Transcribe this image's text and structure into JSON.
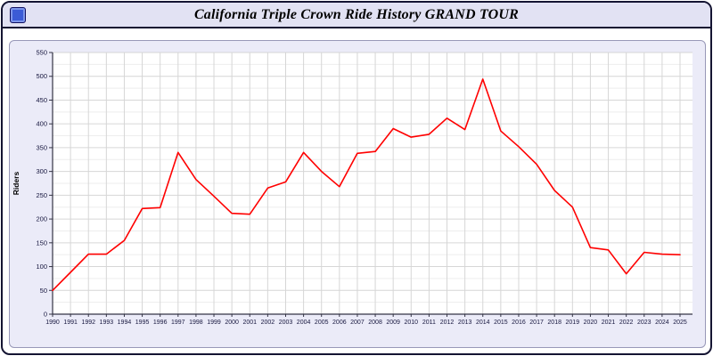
{
  "window": {
    "title": "California Triple Crown Ride History GRAND TOUR"
  },
  "colors": {
    "titlebar_bg": "#e2e2f3",
    "panel_bg": "#ebebf8",
    "window_border": "#141432",
    "plot_bg": "#ffffff",
    "grid_major": "#d6d6d6",
    "grid_minor": "#ededed",
    "axis": "#333344",
    "tick_label": "#16163e",
    "line": "#ff0000"
  },
  "chart_data": {
    "type": "line",
    "title": "California Triple Crown Ride History GRAND TOUR",
    "xlabel": "",
    "ylabel": "Riders",
    "ylim": [
      0,
      550
    ],
    "ytick_step": 50,
    "ytick_minor_step": 25,
    "grid": true,
    "legend": "none",
    "line_color": "#ff0000",
    "categories": [
      "1990",
      "1991",
      "1992",
      "1993",
      "1994",
      "1995",
      "1996",
      "1997",
      "1998",
      "1999",
      "2000",
      "2001",
      "2002",
      "2003",
      "2004",
      "2005",
      "2006",
      "2007",
      "2008",
      "2009",
      "2010",
      "2011",
      "2012",
      "2013",
      "2014",
      "2015",
      "2016",
      "2017",
      "2018",
      "2019",
      "2020",
      "2021",
      "2022",
      "2023",
      "2024",
      "2025"
    ],
    "values": [
      50,
      88,
      126,
      126,
      155,
      222,
      224,
      340,
      283,
      248,
      212,
      210,
      265,
      278,
      340,
      300,
      268,
      338,
      342,
      390,
      372,
      378,
      412,
      388,
      494,
      385,
      352,
      315,
      260,
      225,
      140,
      135,
      85,
      130,
      126,
      125
    ]
  }
}
